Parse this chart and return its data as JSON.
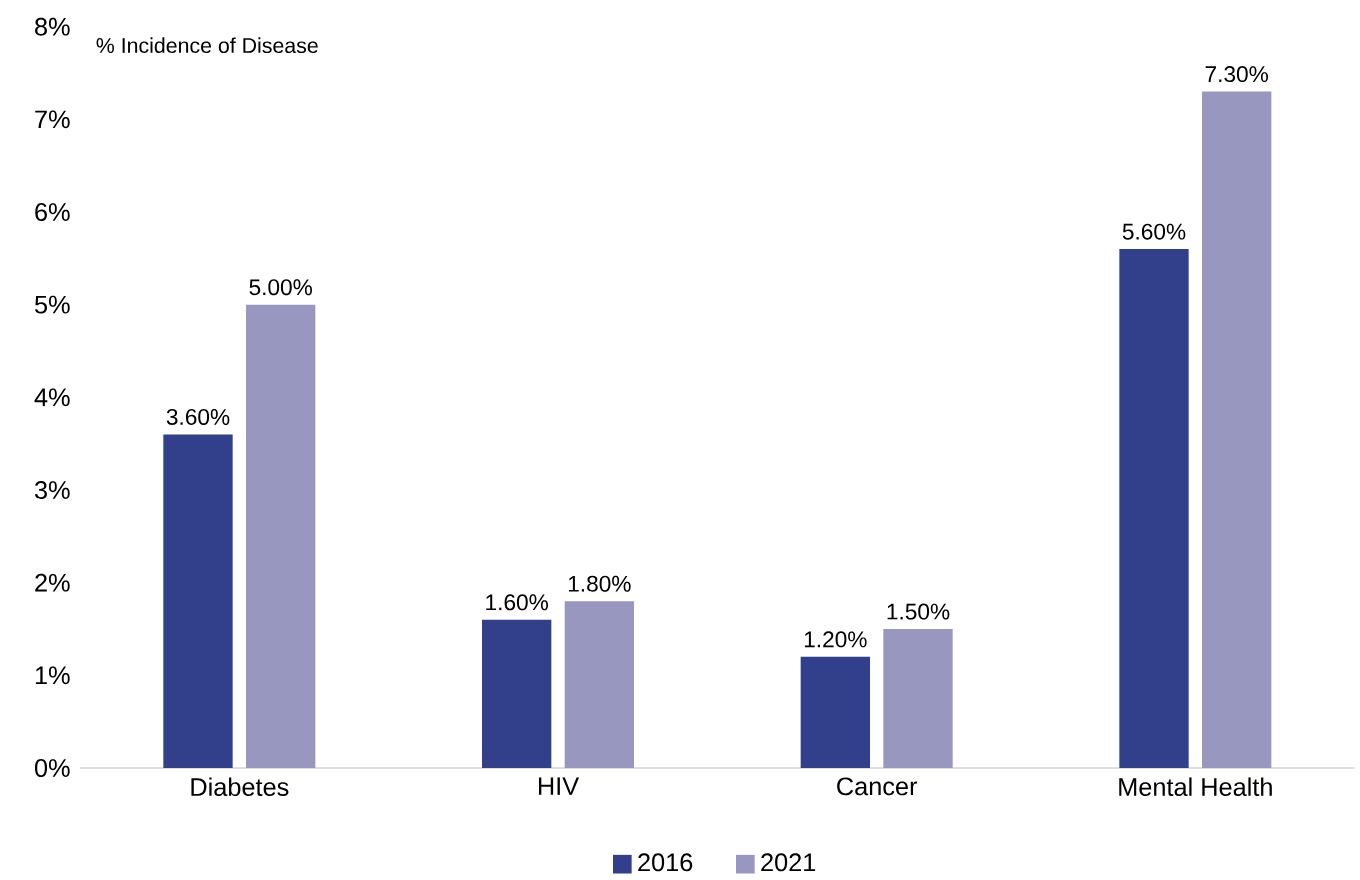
{
  "chart_data": {
    "type": "bar",
    "ylabel": "% Incidence of Disease",
    "categories": [
      "Diabetes",
      "HIV",
      "Cancer",
      "Mental Health"
    ],
    "series": [
      {
        "name": "2016",
        "color": "#323f8a",
        "values": [
          3.6,
          1.6,
          1.2,
          5.6
        ],
        "value_labels": [
          "3.60%",
          "1.60%",
          "1.20%",
          "5.60%"
        ]
      },
      {
        "name": "2021",
        "color": "#9897c0",
        "values": [
          5.0,
          1.8,
          1.5,
          7.3
        ],
        "value_labels": [
          "5.00%",
          "1.80%",
          "1.50%",
          "7.30%"
        ]
      }
    ],
    "ylim": [
      0,
      8
    ],
    "yticks": [
      {
        "value": 0,
        "label": "0%"
      },
      {
        "value": 1,
        "label": "1%"
      },
      {
        "value": 2,
        "label": "2%"
      },
      {
        "value": 3,
        "label": "3%"
      },
      {
        "value": 4,
        "label": "4%"
      },
      {
        "value": 5,
        "label": "5%"
      },
      {
        "value": 6,
        "label": "6%"
      },
      {
        "value": 7,
        "label": "7%"
      },
      {
        "value": 8,
        "label": "8%"
      }
    ],
    "legend": "bottom",
    "grid": false
  }
}
